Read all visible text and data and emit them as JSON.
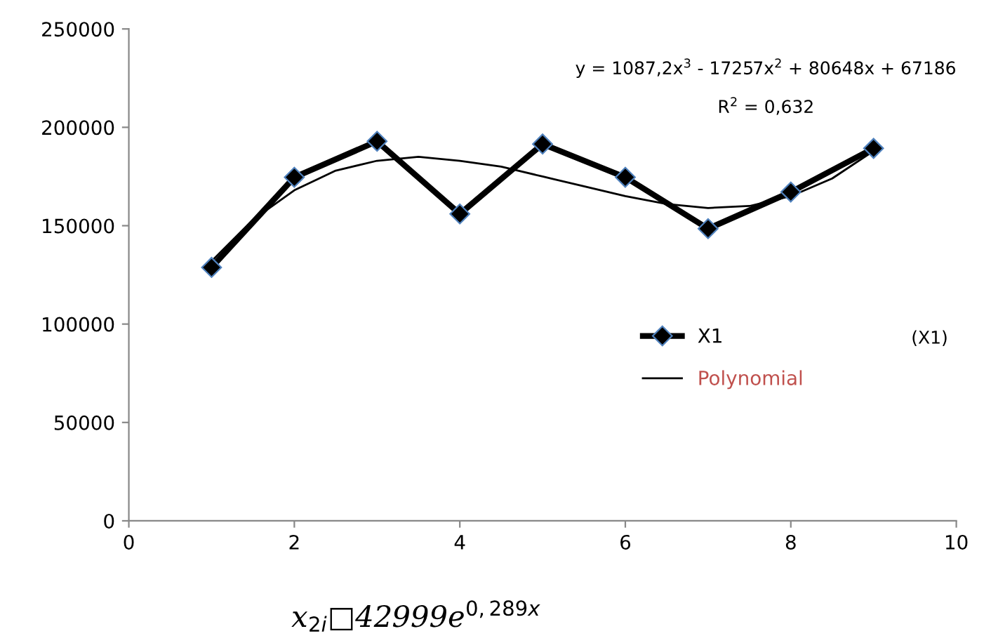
{
  "chart_data": {
    "type": "line",
    "xlim": [
      0,
      10
    ],
    "xticks": [
      0,
      2,
      4,
      6,
      8,
      10
    ],
    "ylim": [
      0,
      250000
    ],
    "yticks": [
      0,
      50000,
      100000,
      150000,
      200000,
      250000
    ],
    "grid": false,
    "legend": "right",
    "series": [
      {
        "name": "X1",
        "color": "#000000",
        "marker": "diamond",
        "x": [
          1,
          2,
          3,
          4,
          5,
          6,
          7,
          8,
          9
        ],
        "values": [
          128800,
          174600,
          192900,
          156000,
          191500,
          174600,
          148500,
          167100,
          189300
        ]
      },
      {
        "name": "Polynomial",
        "color": "#000000",
        "marker": "none",
        "x": [
          1,
          1.5,
          2,
          2.5,
          3,
          3.5,
          4,
          4.5,
          5,
          5.5,
          6,
          6.5,
          7,
          7.5,
          8,
          8.5,
          9
        ],
        "values": [
          132000,
          153000,
          168000,
          178000,
          183000,
          185000,
          183000,
          180000,
          175000,
          170000,
          165000,
          161000,
          159000,
          160000,
          165000,
          174000,
          188000
        ]
      }
    ],
    "annotations": [
      "y = 1087,2x$^{3}$ - 17257x$^{2}$ + 80648x + 67186",
      "R$^{2}$ = 0,632",
      "(X1)",
      "x$_{2i}$□42999e$^{0,289x}$"
    ]
  }
}
